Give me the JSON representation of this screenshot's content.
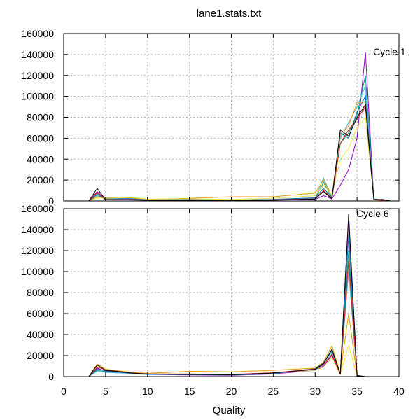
{
  "chart_data": {
    "type": "line",
    "title": "lane1.stats.txt",
    "xlabel": "Quality",
    "xlim": [
      0,
      40
    ],
    "x_ticks": [
      0,
      5,
      10,
      15,
      20,
      25,
      30,
      35,
      40
    ],
    "grid": true,
    "panels": [
      {
        "label": "Cycle 1",
        "ylim": [
          0,
          160000
        ],
        "y_ticks": [
          0,
          20000,
          40000,
          60000,
          80000,
          100000,
          120000,
          140000,
          160000
        ],
        "series": [
          {
            "color": "#9400d3",
            "x": [
              3,
              4,
              5,
              8,
              10,
              15,
              20,
              25,
              30,
              31,
              32,
              33,
              34,
              35,
              36,
              37,
              38,
              39
            ],
            "y": [
              0,
              9000,
              1500,
              1200,
              800,
              700,
              600,
              700,
              1500,
              5000,
              2000,
              15000,
              30000,
              60000,
              142000,
              2000,
              1000,
              0
            ]
          },
          {
            "color": "#009e73",
            "x": [
              3,
              4,
              5,
              8,
              10,
              15,
              20,
              25,
              30,
              31,
              32,
              33,
              34,
              35,
              36,
              37,
              38,
              39
            ],
            "y": [
              0,
              7000,
              2000,
              1500,
              900,
              800,
              700,
              900,
              1800,
              18000,
              3000,
              55000,
              65000,
              82000,
              120000,
              1800,
              800,
              0
            ]
          },
          {
            "color": "#56b4e9",
            "x": [
              3,
              4,
              5,
              8,
              10,
              15,
              20,
              25,
              30,
              31,
              32,
              33,
              34,
              35,
              36,
              37,
              38,
              39
            ],
            "y": [
              0,
              5000,
              2200,
              2500,
              1200,
              1500,
              1000,
              1200,
              2500,
              22000,
              4000,
              60000,
              75000,
              90000,
              110000,
              1500,
              700,
              0
            ]
          },
          {
            "color": "#e69f00",
            "x": [
              3,
              4,
              5,
              8,
              10,
              15,
              20,
              25,
              30,
              31,
              32,
              33,
              34,
              35,
              36,
              37,
              38,
              39
            ],
            "y": [
              0,
              4000,
              3000,
              3000,
              1500,
              2500,
              4000,
              4000,
              7500,
              20000,
              5000,
              62000,
              72000,
              94000,
              95000,
              1200,
              600,
              0
            ]
          },
          {
            "color": "#f0e442",
            "x": [
              3,
              4,
              5,
              8,
              10,
              15,
              20,
              25,
              30,
              31,
              32,
              33,
              34,
              35,
              36,
              37,
              38,
              39
            ],
            "y": [
              0,
              3000,
              2500,
              3500,
              1800,
              2000,
              1500,
              2500,
              5000,
              15000,
              6000,
              40000,
              50000,
              70000,
              80000,
              1000,
              500,
              0
            ]
          },
          {
            "color": "#0072b2",
            "x": [
              3,
              4,
              5,
              8,
              10,
              15,
              20,
              25,
              30,
              31,
              32,
              33,
              34,
              35,
              36,
              37,
              38,
              39
            ],
            "y": [
              0,
              6000,
              1800,
              2000,
              1000,
              1200,
              900,
              1500,
              3000,
              12000,
              3500,
              65000,
              60000,
              85000,
              100000,
              1400,
              700,
              0
            ]
          },
          {
            "color": "#e51e10",
            "x": [
              3,
              4,
              5,
              8,
              10,
              15,
              20,
              25,
              30,
              31,
              32,
              33,
              34,
              35,
              36,
              37,
              38,
              39
            ],
            "y": [
              0,
              8000,
              1200,
              1400,
              900,
              800,
              700,
              1000,
              2000,
              10000,
              2500,
              55000,
              68000,
              78000,
              90000,
              1300,
              600,
              0
            ]
          },
          {
            "color": "#000000",
            "x": [
              3,
              4,
              5,
              8,
              10,
              15,
              20,
              25,
              30,
              31,
              32,
              33,
              34,
              35,
              36,
              37,
              38,
              39
            ],
            "y": [
              0,
              12000,
              1000,
              1000,
              700,
              600,
              500,
              800,
              1800,
              9000,
              2000,
              68000,
              62000,
              80000,
              92000,
              1100,
              1500,
              0
            ]
          }
        ]
      },
      {
        "label": "Cycle 6",
        "ylim": [
          0,
          160000
        ],
        "y_ticks": [
          0,
          20000,
          40000,
          60000,
          80000,
          100000,
          120000,
          140000,
          160000
        ],
        "series": [
          {
            "color": "#9400d3",
            "x": [
              3,
              4,
              5,
              8,
              10,
              15,
              20,
              25,
              30,
              31,
              32,
              33,
              34,
              35,
              36
            ],
            "y": [
              0,
              8000,
              5000,
              3500,
              2000,
              1500,
              1200,
              2500,
              6000,
              10000,
              20000,
              2000,
              150000,
              1000,
              0
            ]
          },
          {
            "color": "#009e73",
            "x": [
              3,
              4,
              5,
              8,
              10,
              15,
              20,
              25,
              30,
              31,
              32,
              33,
              34,
              35,
              36
            ],
            "y": [
              0,
              6000,
              4500,
              3000,
              2200,
              1800,
              1500,
              2800,
              7000,
              12000,
              25000,
              2500,
              120000,
              900,
              0
            ]
          },
          {
            "color": "#56b4e9",
            "x": [
              3,
              4,
              5,
              8,
              10,
              15,
              20,
              25,
              30,
              31,
              32,
              33,
              34,
              35,
              36
            ],
            "y": [
              0,
              5000,
              4000,
              2800,
              1800,
              2000,
              1800,
              3000,
              6500,
              11000,
              22000,
              2200,
              100000,
              800,
              0
            ]
          },
          {
            "color": "#e69f00",
            "x": [
              3,
              4,
              5,
              8,
              10,
              15,
              20,
              25,
              30,
              31,
              32,
              33,
              34,
              35,
              36
            ],
            "y": [
              0,
              12000,
              7000,
              4000,
              3000,
              5000,
              4500,
              6000,
              8000,
              14000,
              29000,
              3000,
              60000,
              700,
              0
            ]
          },
          {
            "color": "#f0e442",
            "x": [
              3,
              4,
              5,
              8,
              10,
              15,
              20,
              25,
              30,
              31,
              32,
              33,
              34,
              35,
              36
            ],
            "y": [
              0,
              10000,
              6000,
              3800,
              2500,
              2500,
              2000,
              3500,
              6000,
              9000,
              18000,
              1800,
              30000,
              600,
              0
            ]
          },
          {
            "color": "#0072b2",
            "x": [
              3,
              4,
              5,
              8,
              10,
              15,
              20,
              25,
              30,
              31,
              32,
              33,
              34,
              35,
              36
            ],
            "y": [
              0,
              7000,
              5500,
              3200,
              2400,
              2200,
              1800,
              3200,
              7500,
              13000,
              24000,
              2400,
              135000,
              900,
              0
            ]
          },
          {
            "color": "#e51e10",
            "x": [
              3,
              4,
              5,
              8,
              10,
              15,
              20,
              25,
              30,
              31,
              32,
              33,
              34,
              35,
              36
            ],
            "y": [
              0,
              9000,
              6500,
              3600,
              2600,
              2400,
              2000,
              3600,
              7200,
              11500,
              21000,
              2100,
              110000,
              800,
              0
            ]
          },
          {
            "color": "#000000",
            "x": [
              3,
              4,
              5,
              8,
              10,
              15,
              20,
              25,
              30,
              31,
              32,
              33,
              34,
              35,
              36
            ],
            "y": [
              0,
              11000,
              6000,
              3400,
              2300,
              2000,
              1700,
              3300,
              6800,
              12500,
              26000,
              2300,
              155000,
              1000,
              0
            ]
          }
        ]
      }
    ]
  }
}
